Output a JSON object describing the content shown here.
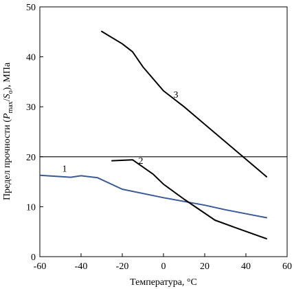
{
  "chart_data": {
    "type": "line",
    "title": "",
    "xlabel": "Температура, °C",
    "ylabel": {
      "prefix": "Предел прочности (",
      "p": "P",
      "p_sub": "max",
      "slash": "/",
      "s": "S",
      "s_sub": "o",
      "suffix": "), МПа"
    },
    "xlim": [
      -60,
      60
    ],
    "ylim": [
      0,
      50
    ],
    "xticks": [
      -60,
      -40,
      -20,
      0,
      20,
      40,
      60
    ],
    "yticks": [
      0,
      10,
      20,
      30,
      40,
      50
    ],
    "reference_line": {
      "y": 20,
      "color": "#000000"
    },
    "grid": false,
    "series": [
      {
        "label": "1",
        "color": "#3a5a96",
        "points": [
          [
            -60,
            16.3
          ],
          [
            -45,
            15.9
          ],
          [
            -40,
            16.2
          ],
          [
            -32,
            15.8
          ],
          [
            -20,
            13.5
          ],
          [
            0,
            11.8
          ],
          [
            20,
            10.3
          ],
          [
            30,
            9.4
          ],
          [
            50,
            7.8
          ]
        ]
      },
      {
        "label": "2",
        "color": "#000000",
        "points": [
          [
            -25,
            19.2
          ],
          [
            -15,
            19.4
          ],
          [
            -5,
            16.5
          ],
          [
            0,
            14.5
          ],
          [
            10,
            11.5
          ],
          [
            25,
            7.3
          ],
          [
            35,
            5.8
          ],
          [
            50,
            3.6
          ]
        ]
      },
      {
        "label": "3",
        "color": "#000000",
        "points": [
          [
            -30,
            45.1
          ],
          [
            -20,
            42.6
          ],
          [
            -15,
            41.0
          ],
          [
            -10,
            38.0
          ],
          [
            0,
            33.2
          ],
          [
            10,
            30.0
          ],
          [
            20,
            26.5
          ],
          [
            30,
            23.0
          ],
          [
            40,
            19.5
          ],
          [
            50,
            16.0
          ]
        ]
      }
    ],
    "series_label_positions": [
      {
        "label": "1",
        "x": -48,
        "y": 17
      },
      {
        "label": "2",
        "x": -11,
        "y": 18.6
      },
      {
        "label": "3",
        "x": 6,
        "y": 31.8
      }
    ]
  }
}
